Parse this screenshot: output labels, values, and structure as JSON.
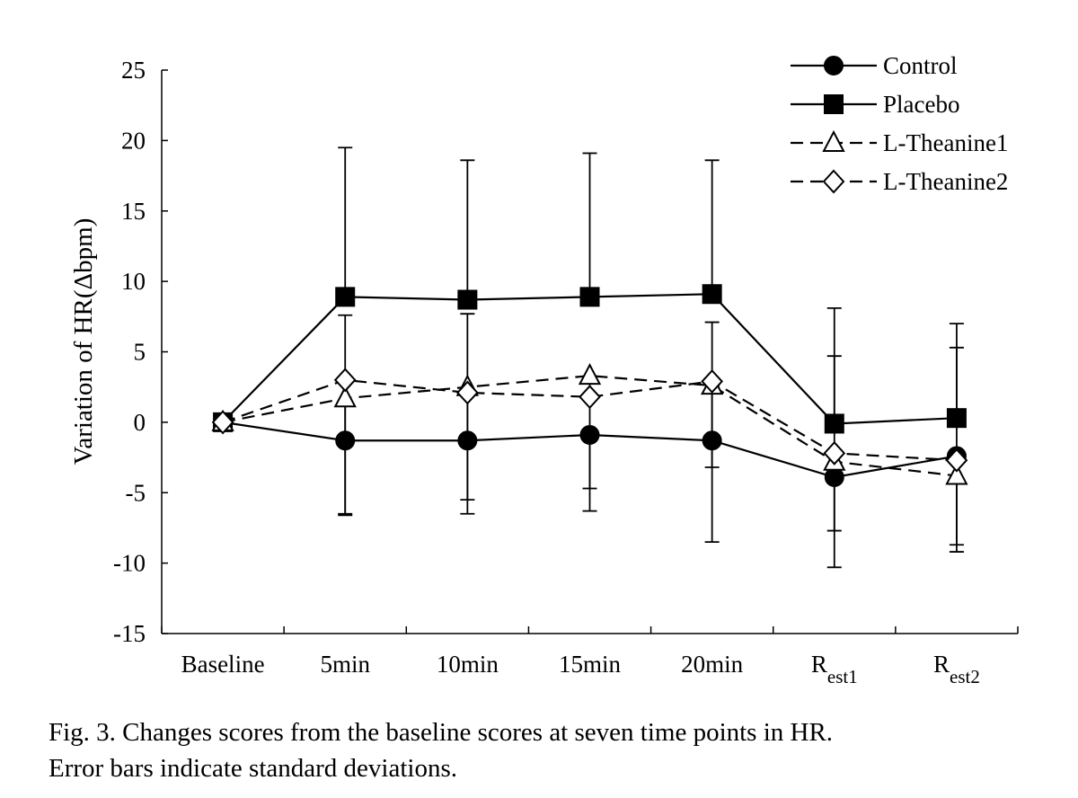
{
  "chart_data": {
    "type": "line",
    "xlabel": "",
    "ylabel": "Variation of HR(Δbpm)",
    "ylim": [
      -15,
      25
    ],
    "yticks": [
      25,
      20,
      15,
      10,
      5,
      0,
      -5,
      -10,
      -15
    ],
    "categories": [
      {
        "label": "Baseline"
      },
      {
        "label": "5min"
      },
      {
        "label": "10min"
      },
      {
        "label": "15min"
      },
      {
        "label": "20min"
      },
      {
        "label": "R",
        "sub": "est1"
      },
      {
        "label": "R",
        "sub": "est2"
      }
    ],
    "legend_position": "top-right",
    "grid": false,
    "error_bars": "standard deviation",
    "series": [
      {
        "name": "Control",
        "marker": "circle",
        "fill": "#000000",
        "dash": "solid",
        "values": [
          0,
          -1.3,
          -1.3,
          -0.9,
          -1.3,
          -3.9,
          -2.4
        ],
        "sd_upper": [
          0,
          7.6,
          7.7,
          null,
          7.1,
          4.7,
          5.3
        ],
        "sd_lower": [
          0,
          -6.5,
          -5.5,
          -4.7,
          -8.5,
          -7.7,
          -8.7
        ]
      },
      {
        "name": "Placebo",
        "marker": "square",
        "fill": "#000000",
        "dash": "solid",
        "values": [
          0,
          8.9,
          8.7,
          8.9,
          9.1,
          -0.1,
          0.3
        ],
        "sd_upper": [
          0,
          19.5,
          18.6,
          19.1,
          18.6,
          8.1,
          7.0
        ],
        "sd_lower": [
          0,
          null,
          null,
          null,
          null,
          null,
          null
        ]
      },
      {
        "name": "L-Theanine1",
        "marker": "triangle",
        "fill": "#ffffff",
        "dash": "dashed",
        "values": [
          0,
          1.7,
          2.5,
          3.3,
          2.6,
          -2.8,
          -3.8
        ],
        "sd_upper": [
          0,
          null,
          null,
          null,
          null,
          null,
          null
        ],
        "sd_lower": [
          0,
          -6.6,
          -6.5,
          -6.3,
          -3.2,
          -10.3,
          -9.2
        ]
      },
      {
        "name": "L-Theanine2",
        "marker": "diamond",
        "fill": "#ffffff",
        "dash": "dashed",
        "values": [
          0,
          3.0,
          2.1,
          1.8,
          2.9,
          -2.2,
          -2.7
        ],
        "sd_upper": [
          0,
          null,
          null,
          null,
          null,
          null,
          null
        ],
        "sd_lower": [
          0,
          null,
          null,
          null,
          null,
          null,
          null
        ]
      }
    ]
  },
  "caption": {
    "line1": "Fig. 3. Changes scores from the baseline scores at seven time points in HR.",
    "line2": "Error bars indicate standard deviations."
  }
}
